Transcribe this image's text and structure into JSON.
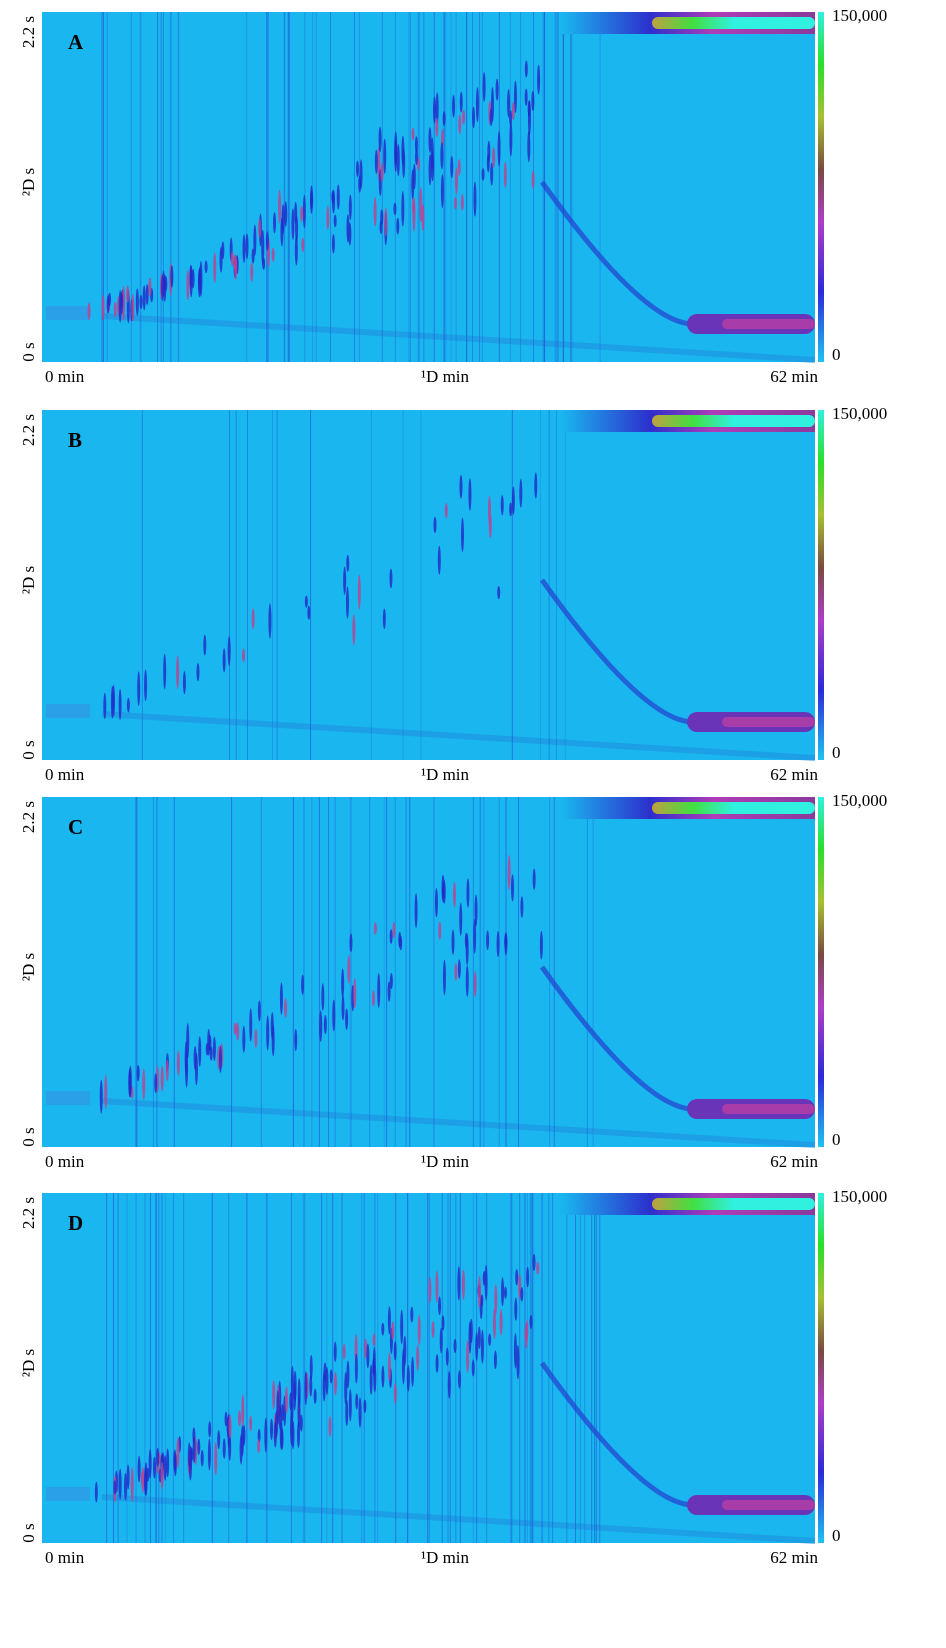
{
  "panels": [
    {
      "label": "A",
      "y_top": "2.2 s",
      "y_title": "²D s",
      "y_bottom": "0 s",
      "x_left": "0 min",
      "x_title": "¹D min",
      "x_right": "62 min",
      "scale_max": "150,000",
      "scale_min": "0"
    },
    {
      "label": "B",
      "y_top": "2.2 s",
      "y_title": "²D s",
      "y_bottom": "0 s",
      "x_left": "0 min",
      "x_title": "¹D min",
      "x_right": "62 min",
      "scale_max": "150,000",
      "scale_min": "0"
    },
    {
      "label": "C",
      "y_top": "2.2 s",
      "y_title": "²D s",
      "y_bottom": "0 s",
      "x_left": "0 min",
      "x_title": "¹D min",
      "x_right": "62 min",
      "scale_max": "150,000",
      "scale_min": "0"
    },
    {
      "label": "D",
      "y_top": "2.2 s",
      "y_title": "²D s",
      "y_bottom": "0 s",
      "x_left": "0 min",
      "x_title": "¹D min",
      "x_right": "62 min",
      "scale_max": "150,000",
      "scale_min": "0"
    }
  ]
}
